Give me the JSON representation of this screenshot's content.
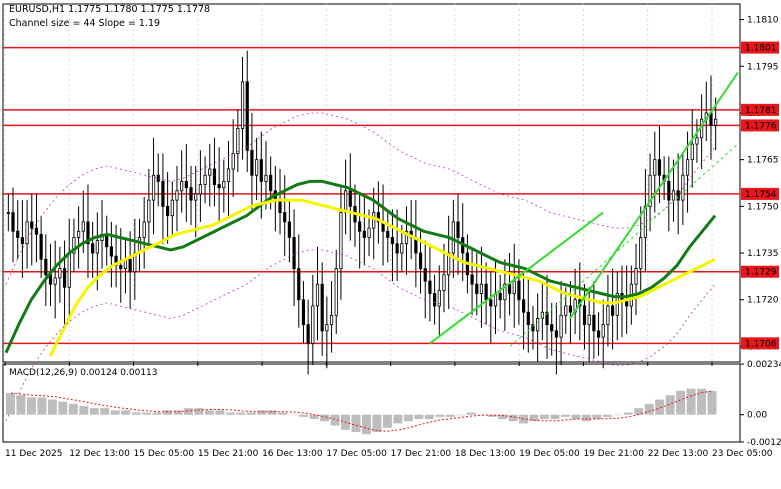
{
  "header": {
    "symbol_line": "EURUSD,H1  1.1775 1.1780 1.1775 1.1778",
    "channel_line": "Channel size = 44 Slope = 1.19"
  },
  "macd": {
    "label": "MACD(12,26,9) 0.00124 0.00113",
    "ticks": [
      "0.00234",
      "0.00",
      "-0.00126"
    ]
  },
  "colors": {
    "background": "#ffffff",
    "candle": "#000000",
    "level_line": "#e8151b",
    "ma_green": "#127a12",
    "ma_yellow": "#f5f500",
    "channel": "#33dd33",
    "envelope": "#b03ab0",
    "histogram": "#bdbdbd",
    "signal": "#e8151b"
  },
  "chart_data": {
    "type": "line",
    "instrument": "EURUSD",
    "timeframe": "H1",
    "ohlc_last": {
      "open": 1.1775,
      "high": 1.178,
      "low": 1.1775,
      "close": 1.1778
    },
    "ylim": [
      1.17,
      1.1815
    ],
    "y_ticks": [
      "1.1810",
      "1.1795",
      "1.1780",
      "1.1765",
      "1.1750",
      "1.1735",
      "1.1720",
      "1.1705"
    ],
    "x_ticks": [
      "11 Dec 2025",
      "12 Dec 13:00",
      "15 Dec 05:00",
      "15 Dec 21:00",
      "16 Dec 13:00",
      "17 Dec 05:00",
      "17 Dec 21:00",
      "18 Dec 13:00",
      "19 Dec 05:00",
      "19 Dec 21:00",
      "22 Dec 13:00",
      "23 Dec 05:00"
    ],
    "levels": [
      {
        "label": "1.1801",
        "value": 1.1801
      },
      {
        "label": "1.1781",
        "value": 1.1781
      },
      {
        "label": "1.1776",
        "value": 1.1776
      },
      {
        "label": "1.1754",
        "value": 1.1754
      },
      {
        "label": "1.1729",
        "value": 1.1729
      },
      {
        "label": "1.1706",
        "value": 1.1706
      }
    ],
    "price_closes": [
      1.1748,
      1.1742,
      1.174,
      1.1738,
      1.1745,
      1.1743,
      1.1741,
      1.1733,
      1.1728,
      1.1725,
      1.1727,
      1.173,
      1.1724,
      1.1735,
      1.174,
      1.1742,
      1.1745,
      1.1738,
      1.1735,
      1.1739,
      1.1741,
      1.1737,
      1.1734,
      1.1731,
      1.173,
      1.1733,
      1.1729,
      1.1735,
      1.174,
      1.1745,
      1.1752,
      1.176,
      1.1758,
      1.175,
      1.1747,
      1.1752,
      1.1755,
      1.1758,
      1.1756,
      1.1752,
      1.1754,
      1.1757,
      1.176,
      1.1762,
      1.1757,
      1.1756,
      1.1758,
      1.1762,
      1.1767,
      1.1775,
      1.179,
      1.1768,
      1.176,
      1.1765,
      1.1758,
      1.176,
      1.1755,
      1.1752,
      1.1748,
      1.1745,
      1.174,
      1.173,
      1.172,
      1.1712,
      1.1706,
      1.1718,
      1.1725,
      1.171,
      1.1712,
      1.1715,
      1.173,
      1.1748,
      1.1755,
      1.175,
      1.1745,
      1.1742,
      1.174,
      1.1743,
      1.1748,
      1.1745,
      1.1742,
      1.174,
      1.1738,
      1.1735,
      1.1738,
      1.1742,
      1.174,
      1.1735,
      1.173,
      1.1726,
      1.1722,
      1.1718,
      1.1723,
      1.1728,
      1.1735,
      1.1745,
      1.174,
      1.1735,
      1.1728,
      1.1725,
      1.1722,
      1.1725,
      1.172,
      1.1718,
      1.1722,
      1.172,
      1.1725,
      1.1722,
      1.1726,
      1.172,
      1.1716,
      1.1712,
      1.171,
      1.1714,
      1.1716,
      1.1712,
      1.171,
      1.1708,
      1.1715,
      1.1718,
      1.1716,
      1.172,
      1.1718,
      1.1712,
      1.1715,
      1.171,
      1.1708,
      1.1712,
      1.1718,
      1.1715,
      1.1722,
      1.172,
      1.1718,
      1.1725,
      1.173,
      1.174,
      1.175,
      1.176,
      1.1765,
      1.176,
      1.1758,
      1.1752,
      1.1755,
      1.1752,
      1.176,
      1.1765,
      1.177,
      1.1772,
      1.1778,
      1.178,
      1.1776,
      1.1778
    ],
    "ma_green": [
      1.1703,
      1.1712,
      1.172,
      1.1726,
      1.1731,
      1.1735,
      1.1738,
      1.174,
      1.1741,
      1.174,
      1.1739,
      1.1738,
      1.1737,
      1.1736,
      1.1737,
      1.1739,
      1.1741,
      1.1743,
      1.1745,
      1.1747,
      1.175,
      1.1753,
      1.1755,
      1.1757,
      1.1758,
      1.1758,
      1.1757,
      1.1756,
      1.1754,
      1.1752,
      1.1749,
      1.1746,
      1.1744,
      1.1742,
      1.1741,
      1.174,
      1.1738,
      1.1736,
      1.1734,
      1.1732,
      1.1731,
      1.173,
      1.1728,
      1.1726,
      1.1725,
      1.1724,
      1.1723,
      1.1722,
      1.1721,
      1.1721,
      1.1722,
      1.1724,
      1.1727,
      1.1731,
      1.1737,
      1.1742,
      1.1747
    ],
    "ma_yellow": [
      1.1702,
      1.171,
      1.1718,
      1.1724,
      1.1728,
      1.1731,
      1.1733,
      1.1735,
      1.1737,
      1.1739,
      1.1741,
      1.1742,
      1.1743,
      1.1744,
      1.1746,
      1.1748,
      1.175,
      1.1751,
      1.1752,
      1.1752,
      1.1752,
      1.1751,
      1.175,
      1.1749,
      1.1748,
      1.1747,
      1.1746,
      1.1744,
      1.1742,
      1.174,
      1.1738,
      1.1736,
      1.1734,
      1.1732,
      1.1731,
      1.173,
      1.1729,
      1.1728,
      1.1727,
      1.1726,
      1.1724,
      1.1722,
      1.1721,
      1.172,
      1.1719,
      1.1719,
      1.172,
      1.1721,
      1.1723,
      1.1725,
      1.1727,
      1.1729,
      1.1731,
      1.1733
    ],
    "macd_hist": [
      0.001,
      0.0009,
      0.0008,
      0.0008,
      0.0007,
      0.0006,
      0.0005,
      0.0004,
      0.0003,
      0.0003,
      0.0002,
      0.0002,
      0.0001,
      0.0001,
      0.0001,
      0.0002,
      0.0002,
      0.0003,
      0.0003,
      0.0002,
      0.0002,
      0.0001,
      0.0001,
      0.0001,
      0.0002,
      0.0002,
      0.0001,
      0.0,
      -0.0001,
      -0.0002,
      -0.0003,
      -0.0005,
      -0.0007,
      -0.0008,
      -0.0009,
      -0.0008,
      -0.0006,
      -0.0004,
      -0.0003,
      -0.0002,
      -0.0002,
      -0.0001,
      -0.0001,
      0.0,
      0.0001,
      0.0,
      -0.0001,
      -0.0002,
      -0.0003,
      -0.0004,
      -0.0003,
      -0.0002,
      -0.0002,
      -0.0001,
      -0.0002,
      -0.0003,
      -0.0002,
      -0.0001,
      0.0,
      0.0001,
      0.0003,
      0.0005,
      0.0007,
      0.0009,
      0.0011,
      0.0012,
      0.0012,
      0.0011
    ]
  }
}
